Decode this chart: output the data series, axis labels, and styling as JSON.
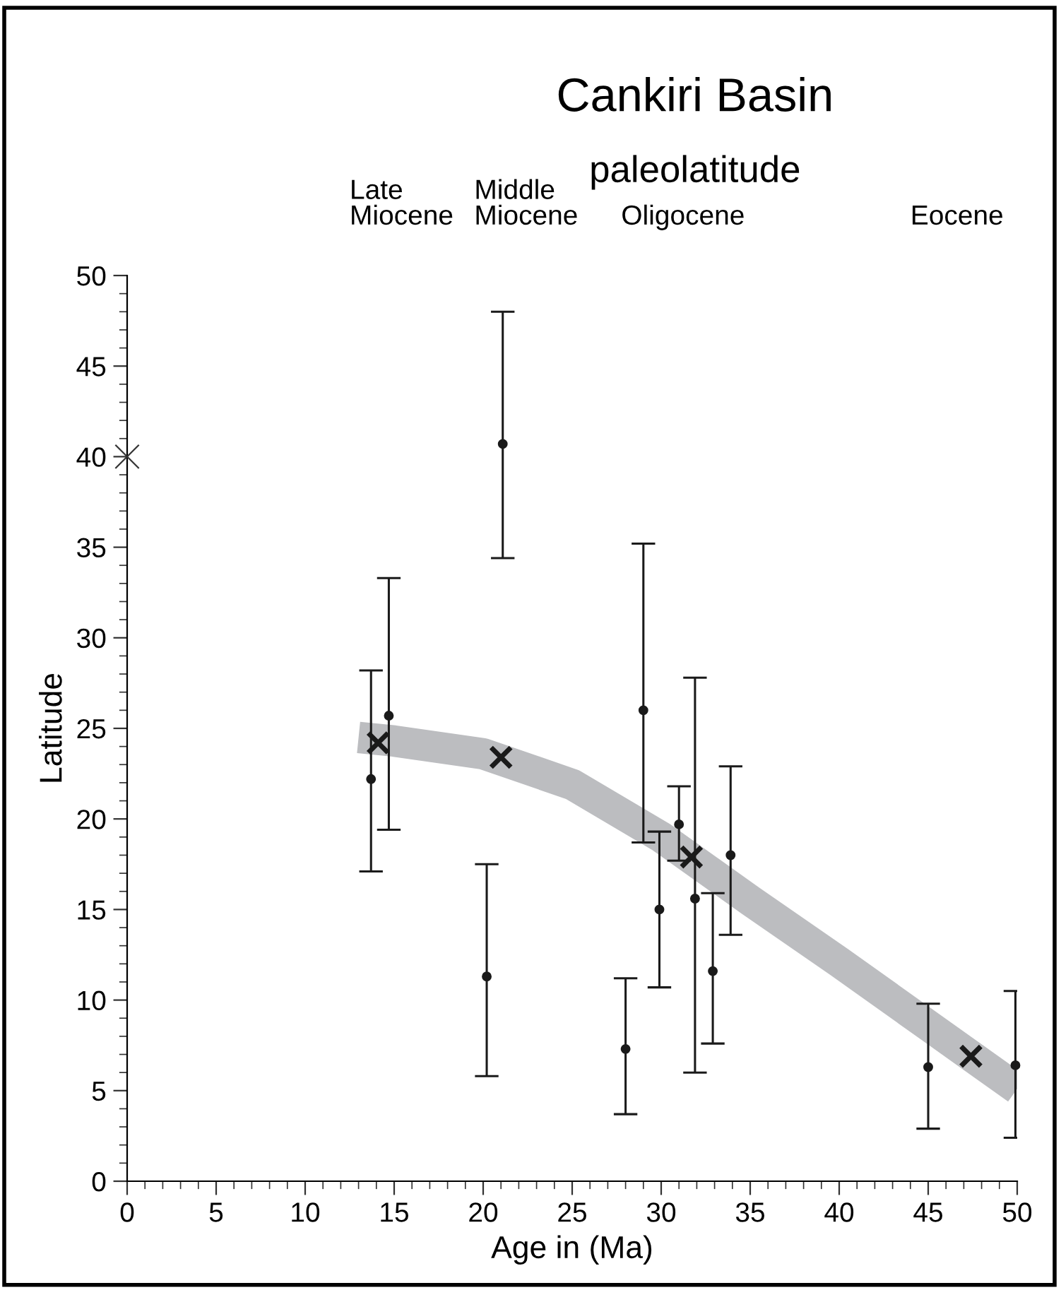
{
  "chart_data": {
    "type": "scatter",
    "title": "Cankiri Basin",
    "subtitle": "paleolatitude",
    "xlabel": "Age in (Ma)",
    "ylabel": "Latitude",
    "xlim": [
      0,
      50
    ],
    "ylim": [
      0,
      50
    ],
    "xticks": [
      0,
      5,
      10,
      15,
      20,
      25,
      30,
      35,
      40,
      45,
      50
    ],
    "yticks": [
      0,
      5,
      10,
      15,
      20,
      25,
      30,
      35,
      40,
      45,
      50
    ],
    "grid": false,
    "legend": false,
    "annotations": [
      "Late\nMiocene",
      "Middle\nMiocene",
      "Oligocene",
      "Eocene"
    ],
    "series": [
      {
        "type": "line",
        "color": "#bcbdc0",
        "marker": "none",
        "x": [
          13,
          15,
          20,
          25,
          30,
          35,
          40,
          45,
          50
        ],
        "values": [
          24.5,
          24.3,
          23.6,
          21.9,
          19.0,
          15.5,
          12.1,
          8.6,
          5.1
        ]
      },
      {
        "color": "#1a1a1a",
        "marker": "circle",
        "x": [
          13.7,
          14.7,
          20.2,
          21.1,
          28.0,
          29.0,
          29.9,
          31.0,
          31.9,
          32.9,
          33.9,
          45.0,
          49.9
        ],
        "values": [
          22.2,
          25.7,
          11.3,
          40.7,
          7.3,
          26.0,
          15.0,
          19.7,
          15.6,
          11.6,
          18.0,
          6.3,
          6.4
        ],
        "errors": [
          [
            17.1,
            28.2
          ],
          [
            19.4,
            33.3
          ],
          [
            5.8,
            17.5
          ],
          [
            34.4,
            48.0
          ],
          [
            3.7,
            11.2
          ],
          [
            18.7,
            35.2
          ],
          [
            10.7,
            19.3
          ],
          [
            17.7,
            21.8
          ],
          [
            6.0,
            27.8
          ],
          [
            7.6,
            15.9
          ],
          [
            13.6,
            22.9
          ],
          [
            2.9,
            9.8
          ],
          [
            2.4,
            10.5
          ]
        ]
      },
      {
        "color": "#1a1a1a",
        "marker": "cross",
        "x": [
          14.1,
          21.0,
          31.7,
          47.4
        ],
        "values": [
          24.2,
          23.4,
          17.9,
          6.9
        ]
      },
      {
        "color": "#333333",
        "marker": "cross",
        "x": [
          0
        ],
        "values": [
          40
        ]
      }
    ]
  }
}
